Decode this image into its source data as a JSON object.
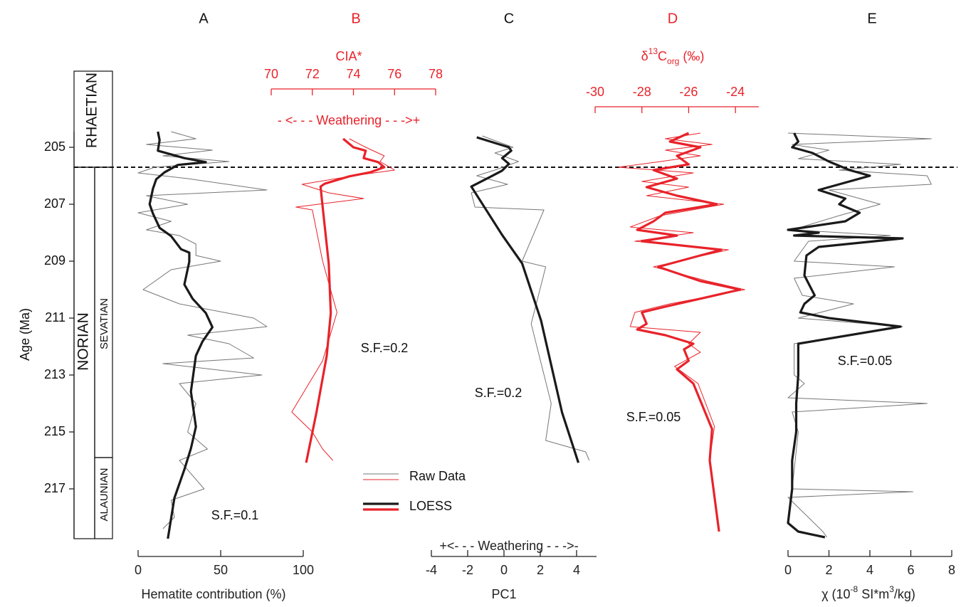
{
  "chart_data": [
    {
      "type": "line",
      "title": "A",
      "title_color": "#111111",
      "color": "#222222",
      "axis_side": "bottom",
      "xlabel_parts": [
        {
          "text": "Hematite contribution (%)",
          "style": "normal"
        }
      ],
      "xlim": [
        0,
        100
      ],
      "xticks": [
        0,
        50,
        100
      ],
      "ylabel": "Age (Ma)",
      "ylim": [
        204.45,
        218.75
      ],
      "yticks": [
        205,
        207,
        209,
        211,
        213,
        215,
        217
      ],
      "y_inverted": true,
      "stages": [
        {
          "name": "RHAETIAN"
        },
        {
          "name": "NORIAN",
          "top": 205.7
        }
      ],
      "substages": [
        {
          "name": "SEVATIAN",
          "top": 205.7
        },
        {
          "name": "ALAUNIAN",
          "top": 215.9
        }
      ],
      "annotation": "S.F.=0.1",
      "series": [
        {
          "name": "Raw Data",
          "color": "#777777",
          "width": 1,
          "x": [
            204.45,
            204.7,
            204.9,
            205.1,
            205.3,
            205.5,
            205.7,
            205.9,
            206.1,
            206.5,
            206.7,
            207.0,
            207.3,
            207.6,
            207.9,
            208.1,
            208.4,
            208.8,
            209.0,
            209.3,
            210.0,
            210.5,
            211.0,
            211.3,
            211.6,
            211.9,
            212.4,
            212.6,
            213.0,
            213.3,
            214.0,
            215.0,
            215.6,
            216.0,
            217.0,
            217.4,
            218.0,
            218.4
          ],
          "values": [
            20,
            35,
            5,
            45,
            15,
            55,
            10,
            0,
            30,
            78,
            5,
            30,
            0,
            20,
            5,
            25,
            35,
            35,
            50,
            20,
            3,
            25,
            70,
            78,
            30,
            55,
            70,
            15,
            75,
            25,
            35,
            30,
            42,
            25,
            40,
            20,
            22,
            15
          ]
        },
        {
          "name": "LOESS",
          "color": "#1a1a1a",
          "width": 3.2,
          "x": [
            204.45,
            204.75,
            205.12,
            205.38,
            205.52,
            205.62,
            205.88,
            206.12,
            206.45,
            207.0,
            207.33,
            207.83,
            208.12,
            208.58,
            208.7,
            209.02,
            209.82,
            210.32,
            210.82,
            211.32,
            211.82,
            212.32,
            213.58,
            214.82,
            215.58,
            216.32,
            217.32,
            218.75
          ],
          "values": [
            12,
            13,
            12,
            28,
            41,
            24,
            16,
            11,
            9,
            7,
            9,
            13,
            20,
            26,
            31,
            31,
            28,
            33,
            41,
            45,
            39,
            35,
            32,
            35,
            32,
            28,
            22,
            18
          ]
        }
      ]
    },
    {
      "type": "line",
      "title": "B",
      "title_color": "#e8232a",
      "color": "#e8232a",
      "axis_side": "top",
      "xlabel_parts": [
        {
          "text": "CIA*",
          "style": "normal"
        }
      ],
      "xlim": [
        70,
        78
      ],
      "xticks": [
        70,
        72,
        74,
        76,
        78
      ],
      "axis_annotation": "- <- - - Weathering - - ->+",
      "annotation": "S.F.=0.2",
      "series": [
        {
          "color": "#e8232a",
          "width": 1,
          "x": [
            204.7,
            205.0,
            205.3,
            205.5,
            205.8,
            206.0,
            206.3,
            206.6,
            206.8,
            207.1,
            207.2,
            209.0,
            210.8,
            212.5,
            214.3,
            215.0,
            215.6,
            216.0
          ],
          "values": [
            73.8,
            74.6,
            75.5,
            75.3,
            76.0,
            74.0,
            71.5,
            72.8,
            74.5,
            71.2,
            72.0,
            72.5,
            73.2,
            72.5,
            71.0,
            72.0,
            72.5,
            73.0
          ]
        },
        {
          "color": "#e8232a",
          "width": 3.2,
          "x": [
            204.7,
            205.0,
            205.12,
            205.38,
            205.52,
            205.7,
            205.88,
            206.02,
            206.28,
            206.38,
            207.08,
            209.08,
            210.82,
            212.32,
            214.32,
            216.08
          ],
          "values": [
            73.5,
            74.0,
            74.6,
            74.5,
            75.2,
            75.5,
            74.8,
            73.8,
            72.6,
            72.4,
            72.5,
            72.8,
            72.9,
            72.7,
            72.2,
            71.7
          ]
        }
      ]
    },
    {
      "type": "line",
      "title": "C",
      "title_color": "#111111",
      "color": "#222222",
      "axis_side": "bottom",
      "xlabel_parts": [
        {
          "text": "PC1",
          "style": "normal"
        }
      ],
      "xlim": [
        -4,
        5.1
      ],
      "xticks": [
        -4,
        -2,
        0,
        2,
        4
      ],
      "axis_annotation": "+<- - - Weathering - - ->-",
      "annotation": "S.F.=0.2",
      "series": [
        {
          "color": "#777777",
          "width": 1,
          "x": [
            204.6,
            205.0,
            205.2,
            205.5,
            205.8,
            206.0,
            206.3,
            206.6,
            207.1,
            207.2,
            209.0,
            209.2,
            211.2,
            214.0,
            215.3,
            215.7,
            216.0
          ],
          "values": [
            -1.2,
            0.5,
            -0.5,
            0.8,
            -0.5,
            -1.5,
            0.2,
            -1.8,
            -1.6,
            2.2,
            1.0,
            2.3,
            1.5,
            2.6,
            2.3,
            4.5,
            4.7
          ]
        },
        {
          "color": "#1a1a1a",
          "width": 3.2,
          "x": [
            204.65,
            205.0,
            205.12,
            205.38,
            205.58,
            205.82,
            206.02,
            206.38,
            208.08,
            209.08,
            211.08,
            214.32,
            216.08
          ],
          "values": [
            -1.5,
            0.27,
            0.4,
            -0.1,
            0.27,
            -0.1,
            -0.7,
            -1.8,
            -0.1,
            1.0,
            2.04,
            3.2,
            4.1
          ]
        }
      ]
    },
    {
      "type": "line",
      "title": "D",
      "title_color": "#e8232a",
      "color": "#e8232a",
      "axis_side": "top",
      "xlabel_parts": [
        {
          "text": "δ",
          "style": "normal"
        },
        {
          "text": "13",
          "style": "sup"
        },
        {
          "text": "C",
          "style": "normal"
        },
        {
          "text": "org",
          "style": "sub"
        },
        {
          "text": " (‰)",
          "style": "normal"
        }
      ],
      "xlim": [
        -30,
        -23
      ],
      "xticks": [
        -30,
        -28,
        -26,
        -24
      ],
      "annotation": "S.F.=0.05",
      "series": [
        {
          "color": "#e8232a",
          "width": 1,
          "x": [
            204.5,
            204.7,
            204.9,
            205.1,
            205.3,
            205.5,
            205.7,
            205.9,
            206.2,
            206.4,
            206.7,
            207.0,
            207.4,
            207.8,
            208.0,
            208.3,
            208.6,
            209.2,
            209.7,
            210.0,
            210.5,
            210.8,
            211.3,
            211.5,
            211.9,
            212.2,
            212.7,
            213.3,
            214.8,
            216.0,
            218.5
          ],
          "values": [
            -25.5,
            -27.0,
            -25.0,
            -27.0,
            -25.5,
            -27.2,
            -29.0,
            -25.8,
            -28.0,
            -26.0,
            -27.8,
            -24.5,
            -27.2,
            -28.5,
            -25.8,
            -28.3,
            -24.3,
            -27.5,
            -25.2,
            -23.6,
            -26.8,
            -28.3,
            -28.5,
            -25.5,
            -26.0,
            -25.5,
            -26.6,
            -25.6,
            -24.9,
            -25.1,
            -24.7
          ]
        },
        {
          "color": "#e8232a",
          "width": 3.2,
          "x": [
            204.5,
            204.8,
            205.0,
            205.3,
            205.6,
            205.8,
            206.1,
            206.4,
            206.7,
            207.0,
            207.3,
            207.6,
            207.9,
            208.1,
            208.3,
            208.6,
            209.2,
            209.7,
            210.0,
            210.6,
            210.8,
            211.2,
            211.4,
            211.6,
            211.9,
            212.1,
            212.5,
            212.8,
            213.3,
            214.9,
            216.0,
            218.5
          ],
          "values": [
            -26.0,
            -26.8,
            -25.5,
            -26.5,
            -26.0,
            -27.5,
            -26.5,
            -27.8,
            -26.5,
            -24.8,
            -27.0,
            -27.5,
            -28.2,
            -26.5,
            -28.0,
            -24.6,
            -27.3,
            -25.5,
            -23.8,
            -27.0,
            -28.0,
            -27.8,
            -28.2,
            -27.0,
            -25.8,
            -26.2,
            -26.0,
            -26.5,
            -25.8,
            -25.0,
            -25.1,
            -24.7
          ]
        }
      ]
    },
    {
      "type": "line",
      "title": "E",
      "title_color": "#111111",
      "color": "#222222",
      "axis_side": "bottom",
      "xlabel_parts": [
        {
          "text": "χ (10",
          "style": "normal"
        },
        {
          "text": "-8",
          "style": "sup"
        },
        {
          "text": " SI*m",
          "style": "normal"
        },
        {
          "text": "3",
          "style": "sup"
        },
        {
          "text": "/kg)",
          "style": "normal"
        }
      ],
      "xlim": [
        0,
        8
      ],
      "xticks": [
        0,
        2,
        4,
        6,
        8
      ],
      "annotation": "S.F.=0.05",
      "series": [
        {
          "color": "#777777",
          "width": 1,
          "x": [
            204.5,
            204.7,
            204.9,
            205.1,
            205.4,
            205.6,
            205.8,
            206.0,
            206.3,
            206.5,
            207.0,
            207.4,
            207.9,
            208.1,
            208.3,
            209.0,
            209.2,
            209.6,
            210.2,
            210.5,
            211.0,
            211.3,
            211.9,
            213.0,
            213.3,
            213.8,
            214.0,
            214.3,
            215.0,
            217.0,
            217.1,
            217.3,
            218.5,
            218.7
          ],
          "values": [
            0.0,
            7.0,
            0.2,
            2.0,
            0.5,
            5.5,
            2.5,
            6.8,
            7.0,
            2.0,
            4.5,
            2.5,
            0.2,
            5.0,
            1.0,
            0.3,
            5.2,
            0.3,
            0.7,
            3.2,
            0.5,
            5.6,
            0.3,
            0.3,
            0.8,
            0.0,
            6.8,
            0.2,
            0.5,
            0.2,
            6.1,
            0.0,
            1.7,
            1.9
          ]
        },
        {
          "color": "#1a1a1a",
          "width": 3.2,
          "x": [
            204.5,
            204.8,
            205.0,
            205.2,
            205.5,
            205.8,
            206.0,
            206.3,
            206.5,
            206.8,
            207.0,
            207.3,
            207.6,
            207.9,
            208.0,
            208.1,
            208.2,
            208.5,
            208.8,
            209.5,
            210.2,
            210.5,
            210.8,
            211.0,
            211.3,
            211.9,
            213.0,
            214.0,
            215.0,
            216.0,
            217.0,
            218.2,
            218.5,
            218.7
          ],
          "values": [
            0.3,
            0.5,
            0.2,
            1.2,
            2.0,
            3.0,
            4.0,
            2.5,
            1.5,
            2.8,
            2.5,
            3.5,
            2.8,
            0.0,
            1.5,
            0.3,
            5.6,
            1.5,
            0.9,
            0.8,
            1.3,
            0.8,
            0.6,
            2.0,
            5.5,
            0.5,
            0.5,
            0.4,
            0.4,
            0.2,
            0.2,
            0.0,
            0.5,
            1.8
          ]
        }
      ]
    }
  ]
}
